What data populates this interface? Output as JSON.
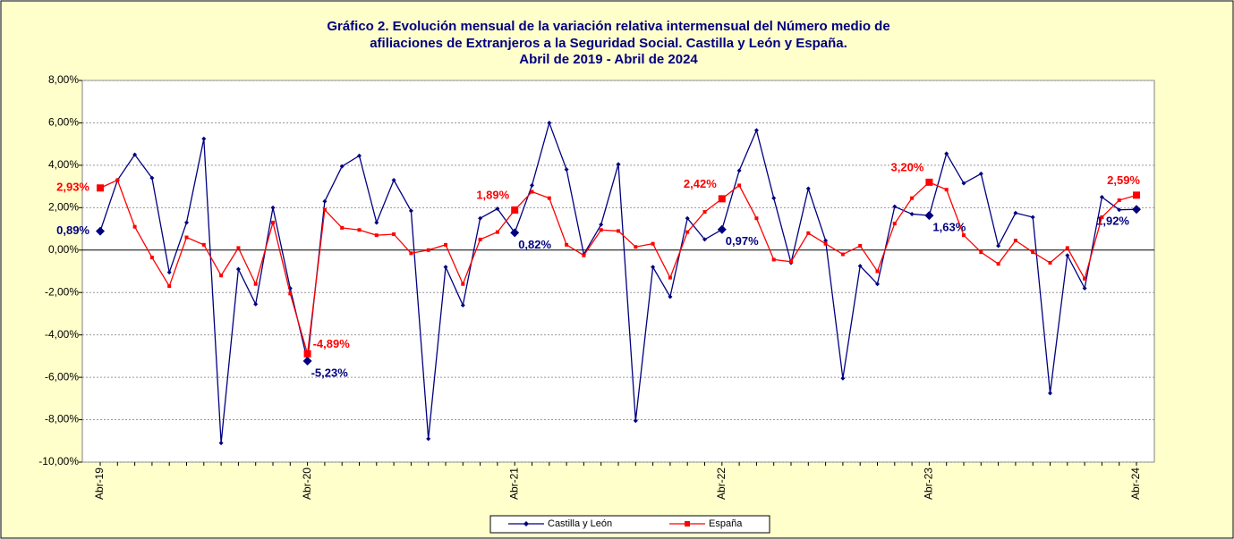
{
  "chart_data": {
    "type": "line",
    "title": "Gráfico 2. Evolución mensual de la variación relativa intermensual del Número medio de",
    "subtitle": [
      "afiliaciones de Extranjeros a la Seguridad Social. Castilla y León y España.",
      "Abril de 2019 - Abril de 2024"
    ],
    "categories": [
      "Abr-19",
      null,
      null,
      null,
      null,
      null,
      null,
      null,
      null,
      null,
      null,
      null,
      "Abr-20",
      null,
      null,
      null,
      null,
      null,
      null,
      null,
      null,
      null,
      null,
      null,
      "Abr-21",
      null,
      null,
      null,
      null,
      null,
      null,
      null,
      null,
      null,
      null,
      null,
      "Abr-22",
      null,
      null,
      null,
      null,
      null,
      null,
      null,
      null,
      null,
      null,
      null,
      "Abr-23",
      null,
      null,
      null,
      null,
      null,
      null,
      null,
      null,
      null,
      null,
      null,
      "Abr-24"
    ],
    "series": [
      {
        "name": "Castilla y León",
        "color": "#000080",
        "values": [
          0.89,
          3.3,
          4.5,
          3.4,
          -1.05,
          1.3,
          5.25,
          -9.1,
          -0.9,
          -2.55,
          2.0,
          -1.8,
          -5.23,
          2.3,
          3.95,
          4.45,
          1.3,
          3.3,
          1.85,
          -8.9,
          -0.8,
          -2.6,
          1.5,
          1.95,
          0.82,
          3.05,
          6.0,
          3.8,
          -0.2,
          1.2,
          4.05,
          -8.05,
          -0.8,
          -2.2,
          1.5,
          0.5,
          0.97,
          3.75,
          5.65,
          2.45,
          -0.6,
          2.9,
          0.45,
          -6.05,
          -0.75,
          -1.6,
          2.05,
          1.7,
          1.63,
          4.55,
          3.15,
          3.6,
          0.2,
          1.75,
          1.55,
          -6.75,
          -0.25,
          -1.8,
          2.5,
          1.9,
          1.92
        ],
        "value_labels": [
          "0,89%",
          null,
          null,
          null,
          null,
          null,
          null,
          null,
          null,
          null,
          null,
          null,
          "-5,23%",
          null,
          null,
          null,
          null,
          null,
          null,
          null,
          null,
          null,
          null,
          null,
          "0,82%",
          null,
          null,
          null,
          null,
          null,
          null,
          null,
          null,
          null,
          null,
          null,
          "0,97%",
          null,
          null,
          null,
          null,
          null,
          null,
          null,
          null,
          null,
          null,
          null,
          "1,63%",
          null,
          null,
          null,
          null,
          null,
          null,
          null,
          null,
          null,
          null,
          null,
          "1,92%"
        ]
      },
      {
        "name": "España",
        "color": "#ff0000",
        "values": [
          2.93,
          3.3,
          1.1,
          -0.35,
          -1.7,
          0.6,
          0.25,
          -1.2,
          0.1,
          -1.6,
          1.3,
          -2.05,
          -4.89,
          1.9,
          1.05,
          0.95,
          0.7,
          0.75,
          -0.15,
          0.0,
          0.25,
          -1.6,
          0.5,
          0.85,
          1.89,
          2.75,
          2.45,
          0.25,
          -0.25,
          0.95,
          0.9,
          0.15,
          0.3,
          -1.3,
          0.85,
          1.8,
          2.42,
          3.05,
          1.5,
          -0.45,
          -0.55,
          0.8,
          0.3,
          -0.2,
          0.2,
          -1.0,
          1.25,
          2.45,
          3.2,
          2.85,
          0.7,
          -0.1,
          -0.65,
          0.45,
          -0.1,
          -0.6,
          0.1,
          -1.35,
          1.55,
          2.35,
          2.59
        ],
        "value_labels": [
          "2,93%",
          null,
          null,
          null,
          null,
          null,
          null,
          null,
          null,
          null,
          null,
          null,
          "-4,89%",
          null,
          null,
          null,
          null,
          null,
          null,
          null,
          null,
          null,
          null,
          null,
          "1,89%",
          null,
          null,
          null,
          null,
          null,
          null,
          null,
          null,
          null,
          null,
          null,
          "2,42%",
          null,
          null,
          null,
          null,
          null,
          null,
          null,
          null,
          null,
          null,
          null,
          "3,20%",
          null,
          null,
          null,
          null,
          null,
          null,
          null,
          null,
          null,
          null,
          null,
          "2,59%"
        ]
      }
    ],
    "ylim": [
      -10,
      8
    ],
    "yticks": [
      {
        "value": -10,
        "label": "-10,00%"
      },
      {
        "value": -8,
        "label": "-8,00%"
      },
      {
        "value": -6,
        "label": "-6,00%"
      },
      {
        "value": -4,
        "label": "-4,00%"
      },
      {
        "value": -2,
        "label": "-2,00%"
      },
      {
        "value": 0,
        "label": "0,00%"
      },
      {
        "value": 2,
        "label": "2,00%"
      },
      {
        "value": 4,
        "label": "4,00%"
      },
      {
        "value": 6,
        "label": "6,00%"
      },
      {
        "value": 8,
        "label": "8,00%"
      }
    ],
    "grid": true,
    "legend": "bottom"
  }
}
